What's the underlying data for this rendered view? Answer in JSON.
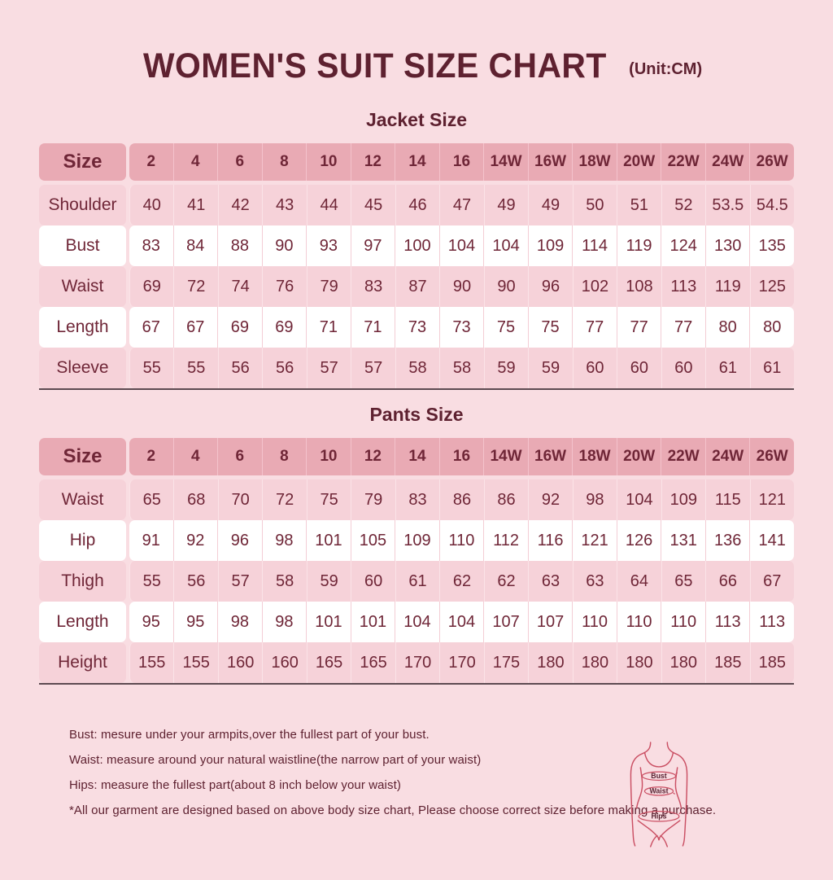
{
  "page": {
    "title": "WOMEN'S SUIT SIZE CHART",
    "unit": "(Unit:CM)"
  },
  "jacket": {
    "heading": "Jacket Size",
    "size_header": "Size",
    "sizes": [
      "2",
      "4",
      "6",
      "8",
      "10",
      "12",
      "14",
      "16",
      "14W",
      "16W",
      "18W",
      "20W",
      "22W",
      "24W",
      "26W"
    ],
    "rows": [
      {
        "label": "Shoulder",
        "values": [
          "40",
          "41",
          "42",
          "43",
          "44",
          "45",
          "46",
          "47",
          "49",
          "49",
          "50",
          "51",
          "52",
          "53.5",
          "54.5"
        ]
      },
      {
        "label": "Bust",
        "values": [
          "83",
          "84",
          "88",
          "90",
          "93",
          "97",
          "100",
          "104",
          "104",
          "109",
          "114",
          "119",
          "124",
          "130",
          "135"
        ]
      },
      {
        "label": "Waist",
        "values": [
          "69",
          "72",
          "74",
          "76",
          "79",
          "83",
          "87",
          "90",
          "90",
          "96",
          "102",
          "108",
          "113",
          "119",
          "125"
        ]
      },
      {
        "label": "Length",
        "values": [
          "67",
          "67",
          "69",
          "69",
          "71",
          "71",
          "73",
          "73",
          "75",
          "75",
          "77",
          "77",
          "77",
          "80",
          "80"
        ]
      },
      {
        "label": "Sleeve",
        "values": [
          "55",
          "55",
          "56",
          "56",
          "57",
          "57",
          "58",
          "58",
          "59",
          "59",
          "60",
          "60",
          "60",
          "61",
          "61"
        ]
      }
    ]
  },
  "pants": {
    "heading": "Pants Size",
    "size_header": "Size",
    "sizes": [
      "2",
      "4",
      "6",
      "8",
      "10",
      "12",
      "14",
      "16",
      "14W",
      "16W",
      "18W",
      "20W",
      "22W",
      "24W",
      "26W"
    ],
    "rows": [
      {
        "label": "Waist",
        "values": [
          "65",
          "68",
          "70",
          "72",
          "75",
          "79",
          "83",
          "86",
          "86",
          "92",
          "98",
          "104",
          "109",
          "115",
          "121"
        ]
      },
      {
        "label": "Hip",
        "values": [
          "91",
          "92",
          "96",
          "98",
          "101",
          "105",
          "109",
          "110",
          "112",
          "116",
          "121",
          "126",
          "131",
          "136",
          "141"
        ]
      },
      {
        "label": "Thigh",
        "values": [
          "55",
          "56",
          "57",
          "58",
          "59",
          "60",
          "61",
          "62",
          "62",
          "63",
          "63",
          "64",
          "65",
          "66",
          "67"
        ]
      },
      {
        "label": "Length",
        "values": [
          "95",
          "95",
          "98",
          "98",
          "101",
          "101",
          "104",
          "104",
          "107",
          "107",
          "110",
          "110",
          "110",
          "113",
          "113"
        ]
      },
      {
        "label": "Height",
        "values": [
          "155",
          "155",
          "160",
          "160",
          "165",
          "165",
          "170",
          "170",
          "175",
          "180",
          "180",
          "180",
          "180",
          "185",
          "185"
        ]
      }
    ]
  },
  "notes": [
    "Bust: mesure under your armpits,over the fullest part of your bust.",
    "Waist: measure around your natural waistline(the narrow part of your waist)",
    "Hips: measure the fullest part(about 8 inch below your waist)",
    "*All our garment are designed based on above body size chart, Please choose correct size before making a purchase."
  ],
  "figure": {
    "labels": [
      "Bust",
      "Waist",
      "Hips"
    ]
  },
  "colors": {
    "bg": "#f9dde2",
    "headerBg": "#e9aab4",
    "pinkRow": "#f6d2d9",
    "whiteRow": "#ffffff",
    "titleColor": "#5e2130",
    "cellColor": "#6f2637",
    "underline": "#5d4a51",
    "figStroke": "#ca4f63"
  }
}
